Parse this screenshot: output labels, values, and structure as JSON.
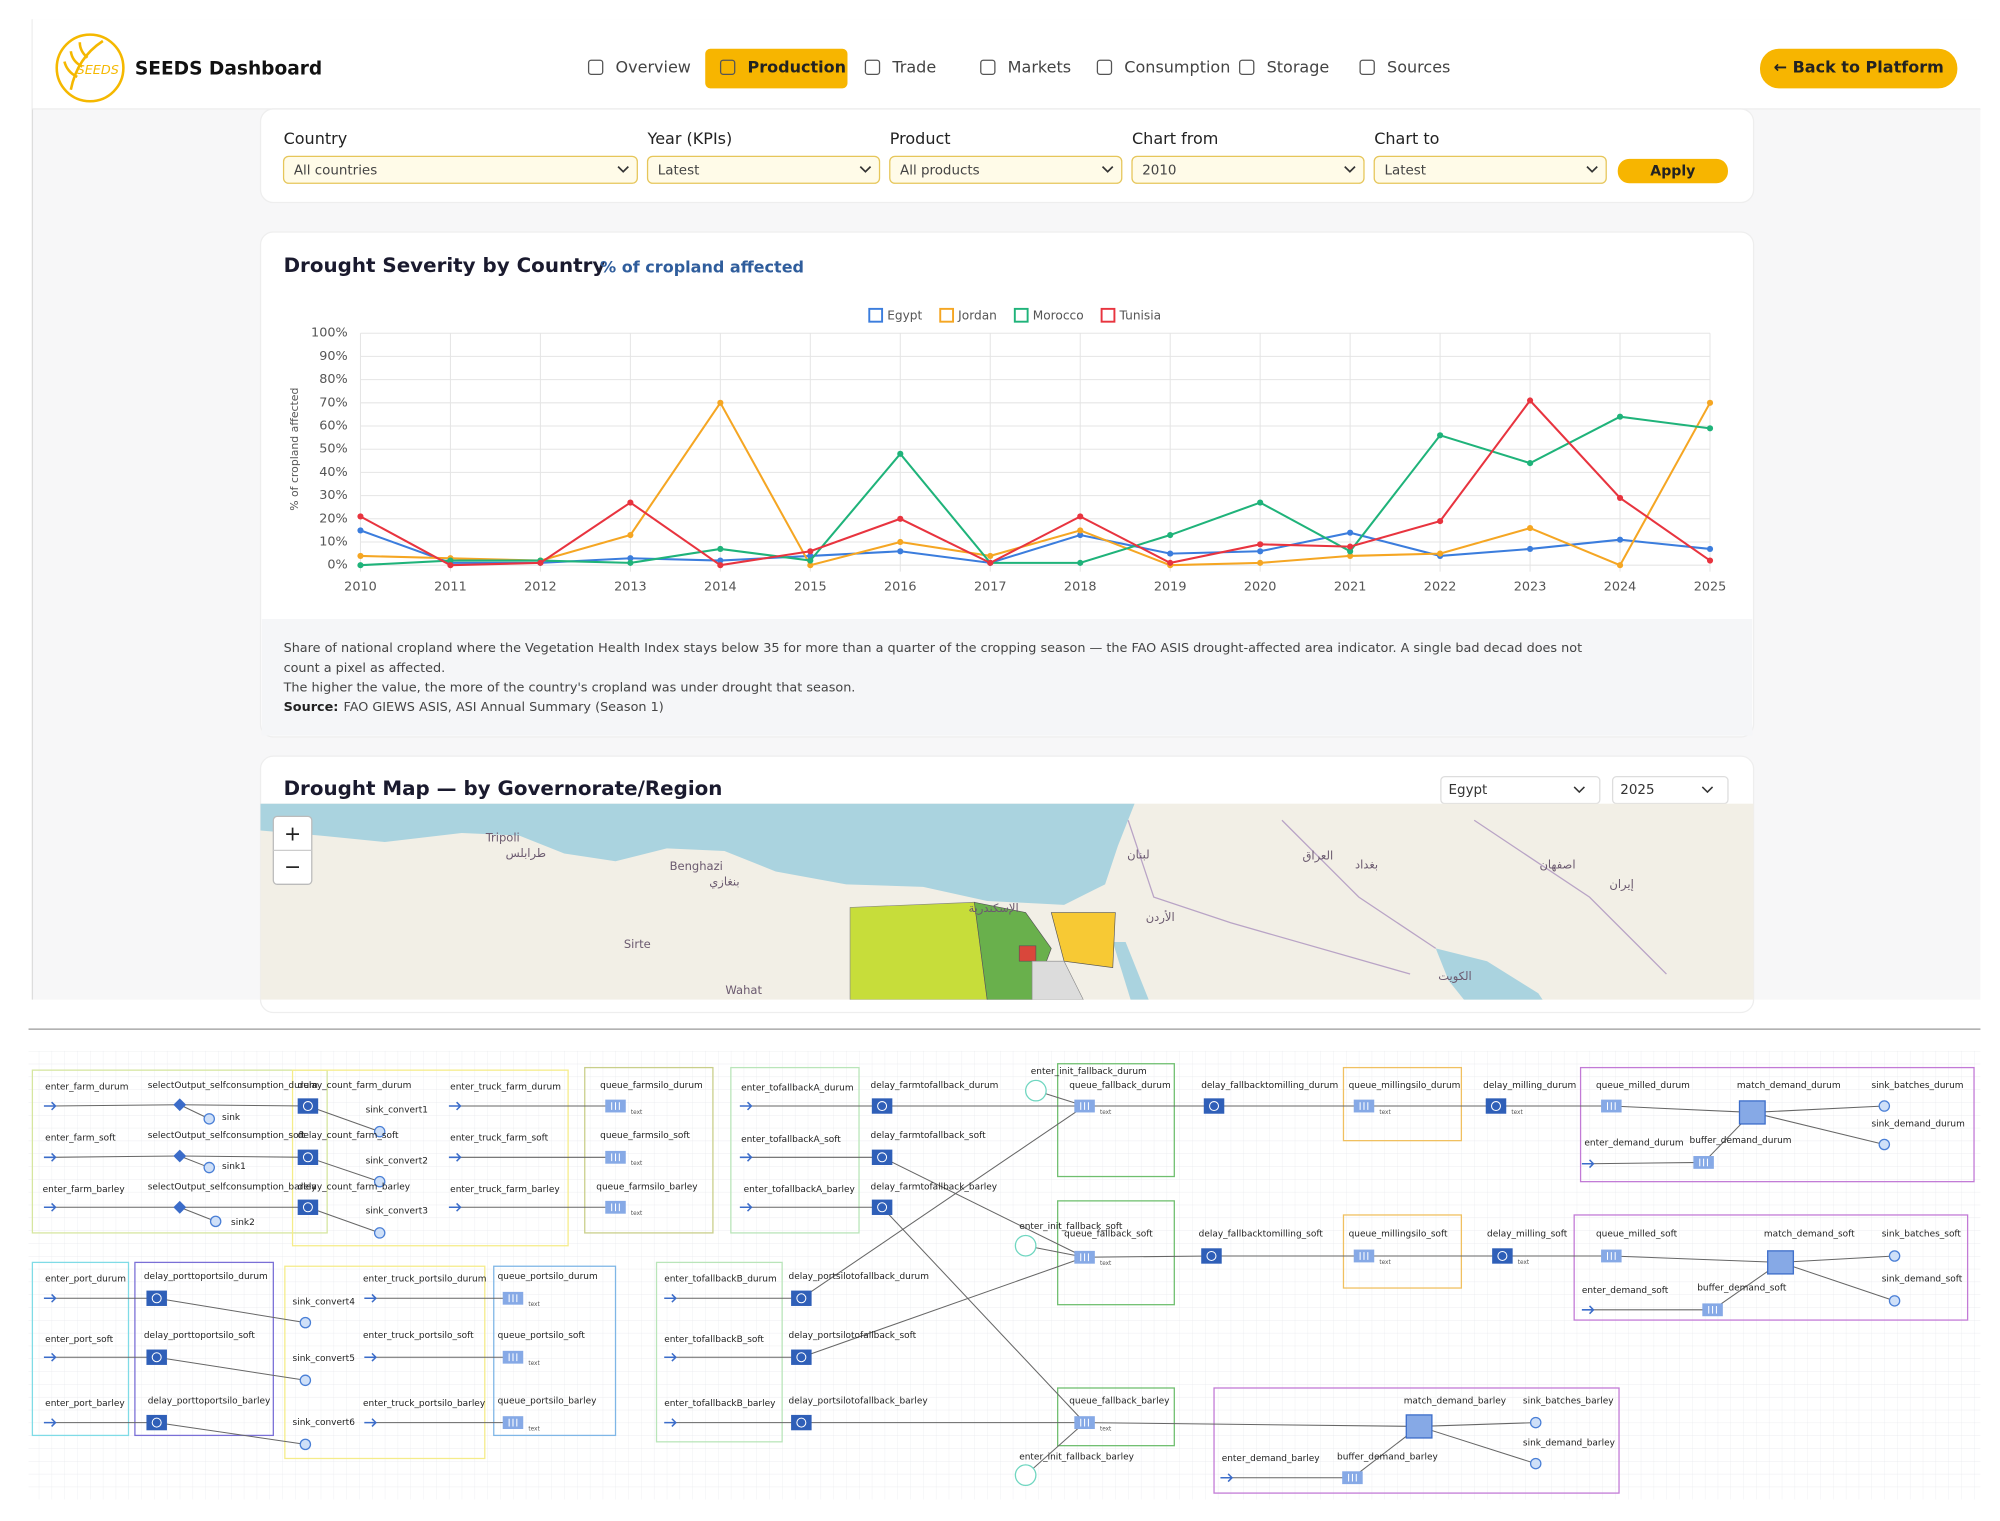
{
  "header": {
    "logo_text": "SEEDS",
    "brand": "SEEDS Dashboard",
    "nav": [
      "Overview",
      "Production",
      "Trade",
      "Markets",
      "Consumption",
      "Storage",
      "Sources"
    ],
    "back_button": "← Back to Platform"
  },
  "filters": {
    "fields": [
      {
        "label": "Country",
        "value": "All countries"
      },
      {
        "label": "Year (KPIs)",
        "value": "Latest"
      },
      {
        "label": "Product",
        "value": "All products"
      },
      {
        "label": "Chart from",
        "value": "2010"
      },
      {
        "label": "Chart to",
        "value": "Latest"
      }
    ],
    "apply": "Apply"
  },
  "chart_data": {
    "type": "line",
    "title": "Drought Severity by Country",
    "subtitle": "% of cropland affected",
    "ylabel": "% of cropland affected",
    "x": [
      2010,
      2011,
      2012,
      2013,
      2014,
      2015,
      2016,
      2017,
      2018,
      2019,
      2020,
      2021,
      2022,
      2023,
      2024,
      2025
    ],
    "series": [
      {
        "name": "Egypt",
        "color": "#3b7ddd",
        "values": [
          15,
          1,
          1,
          3,
          2,
          4,
          6,
          1,
          13,
          5,
          6,
          14,
          4,
          7,
          11,
          7
        ]
      },
      {
        "name": "Jordan",
        "color": "#f5a623",
        "values": [
          4,
          3,
          2,
          13,
          70,
          0,
          10,
          4,
          15,
          0,
          1,
          4,
          5,
          16,
          0,
          70
        ]
      },
      {
        "name": "Morocco",
        "color": "#1fb37a",
        "values": [
          0,
          2,
          2,
          1,
          7,
          2,
          48,
          1,
          1,
          13,
          27,
          6,
          56,
          44,
          64,
          59
        ]
      },
      {
        "name": "Tunisia",
        "color": "#e8343f",
        "values": [
          21,
          0,
          1,
          27,
          0,
          6,
          20,
          1,
          21,
          1,
          9,
          8,
          19,
          71,
          29,
          2
        ]
      }
    ],
    "xlim": [
      2010,
      2025
    ],
    "xticks": [
      2010,
      2011,
      2012,
      2013,
      2014,
      2015,
      2016,
      2017,
      2018,
      2019,
      2020,
      2021,
      2022,
      2023,
      2024,
      2025
    ],
    "ylim": [
      0,
      100
    ],
    "yticks": [
      {
        "value": 0,
        "label": "0%"
      },
      {
        "value": 10,
        "label": "10%"
      },
      {
        "value": 20,
        "label": "20%"
      },
      {
        "value": 30,
        "label": "30%"
      },
      {
        "value": 40,
        "label": "40%"
      },
      {
        "value": 50,
        "label": "50%"
      },
      {
        "value": 60,
        "label": "60%"
      },
      {
        "value": 70,
        "label": "70%"
      },
      {
        "value": 80,
        "label": "80%"
      },
      {
        "value": 90,
        "label": "90%"
      },
      {
        "value": 100,
        "label": "100%"
      }
    ],
    "grid": true,
    "legend": "top"
  },
  "chart_note": {
    "lines": [
      "Share of national cropland where the Vegetation Health Index stays below 35 for more than a quarter of the cropping season — the FAO ASIS drought-affected area indicator. A single bad decad does not",
      "count a pixel as affected.",
      "The higher the value, the more of the country's cropland was under drought that season."
    ],
    "source_label": "Source:",
    "source": "FAO GIEWS ASIS, ASI Annual Summary (Season 1)"
  },
  "map": {
    "title": "Drought Map — by Governorate/Region",
    "country": "Egypt",
    "year": "2025",
    "zoom_in": "+",
    "zoom_out": "−",
    "labels": [
      "Tripoli",
      "طرابلس",
      "Benghazi",
      "بنغازي",
      "Sirte",
      "Wahat",
      "الإسكندرية",
      "الأردن",
      "لبنان",
      "العراق",
      "بغداد",
      "الكويت",
      "إيران",
      "اصفهان"
    ]
  },
  "diagram": {
    "note": "text",
    "nodes": [
      "enter_farm_durum",
      "selectOutput_selfconsumption_durum",
      "sink",
      "delay_count_farm_durum",
      "sink_convert1",
      "enter_truck_farm_durum",
      "queue_farmsilo_durum",
      "enter_farm_soft",
      "selectOutput_selfconsumption_soft",
      "sink1",
      "delay_count_farm_soft",
      "sink_convert2",
      "enter_truck_farm_soft",
      "queue_farmsilo_soft",
      "enter_farm_barley",
      "selectOutput_selfconsumption_barley",
      "sink2",
      "delay_count_farm_barley",
      "sink_convert3",
      "enter_truck_farm_barley",
      "queue_farmsilo_barley",
      "enter_tofallbackA_durum",
      "delay_farmtofallback_durum",
      "enter_tofallbackA_soft",
      "delay_farmtofallback_soft",
      "enter_tofallbackA_barley",
      "delay_farmtofallback_barley",
      "enter_init_fallback_durum",
      "queue_fallback_durum",
      "enter_init_fallback_soft",
      "queue_fallback_soft",
      "queue_fallback_barley",
      "enter_init_fallback_barley",
      "delay_fallbacktomilling_durum",
      "queue_millingsilo_durum",
      "delay_milling_durum",
      "queue_milled_durum",
      "match_demand_durum",
      "sink_batches_durum",
      "sink_demand_durum",
      "enter_demand_durum",
      "buffer_demand_durum",
      "delay_fallbacktomilling_soft",
      "queue_millingsilo_soft",
      "delay_milling_soft",
      "queue_milled_soft",
      "match_demand_soft",
      "sink_batches_soft",
      "sink_demand_soft",
      "enter_demand_soft",
      "buffer_demand_soft",
      "match_demand_barley",
      "sink_batches_barley",
      "sink_demand_barley",
      "enter_demand_barley",
      "buffer_demand_barley",
      "enter_port_durum",
      "delay_porttoportsilo_durum",
      "sink_convert4",
      "enter_truck_portsilo_durum",
      "queue_portsilo_durum",
      "enter_port_soft",
      "delay_porttoportsilo_soft",
      "sink_convert5",
      "enter_truck_portsilo_soft",
      "queue_portsilo_soft",
      "enter_port_barley",
      "delay_porttoportsilo_barley",
      "sink_convert6",
      "enter_truck_portsilo_barley",
      "queue_portsilo_barley",
      "enter_tofallbackB_durum",
      "delay_portsilotofallback_durum",
      "enter_tofallbackB_soft",
      "delay_portsilotofallback_soft",
      "enter_tofallbackB_barley",
      "delay_portsilotofallback_barley"
    ]
  }
}
